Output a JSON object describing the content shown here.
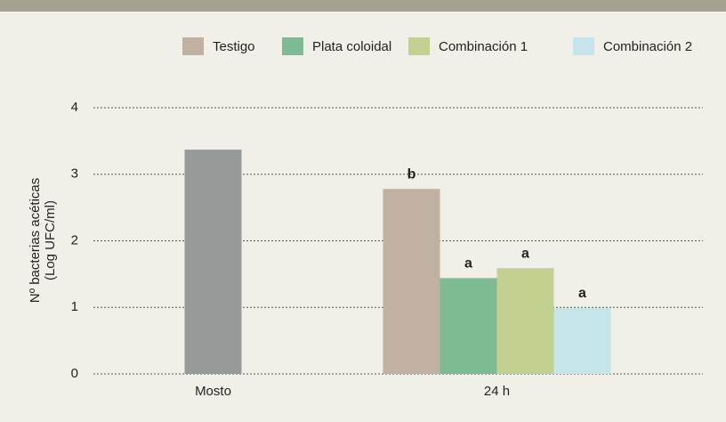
{
  "chart_data": {
    "type": "bar",
    "y_label": [
      "Nº bacterias acéticas",
      "(Log UFC/ml)"
    ],
    "categories": [
      "Mosto",
      "24 h"
    ],
    "series": [
      {
        "color": "#969a99",
        "values": [
          3.37,
          null
        ]
      },
      {
        "name": "Testigo",
        "color": "#c0b1a2",
        "values": [
          null,
          2.78
        ],
        "annotations": [
          null,
          "b"
        ]
      },
      {
        "name": "Plata coloidal",
        "color": "#7dbb95",
        "values": [
          null,
          1.44
        ],
        "annotations": [
          null,
          "a"
        ]
      },
      {
        "name": "Combinación 1",
        "color": "#c3d190",
        "values": [
          null,
          1.59
        ],
        "annotations": [
          null,
          "a"
        ]
      },
      {
        "name": "Combinación 2",
        "color": "#c5e5ea",
        "values": [
          null,
          0.99
        ],
        "annotations": [
          null,
          "a"
        ]
      }
    ],
    "ylim": [
      0,
      4
    ],
    "yticks": [
      0,
      1,
      2,
      3,
      4
    ],
    "grid": true,
    "legend": "top-right"
  }
}
